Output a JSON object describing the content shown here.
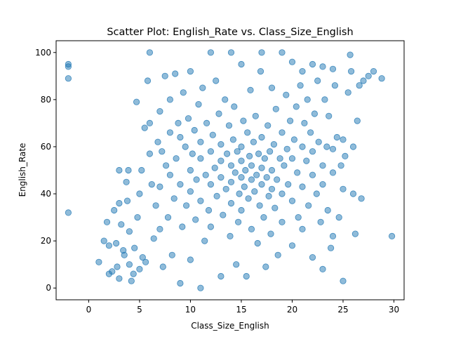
{
  "chart_data": {
    "type": "scatter",
    "title": "Scatter Plot: English_Rate vs. Class_Size_English",
    "xlabel": "Class_Size_English",
    "ylabel": "English_Rate",
    "xlim": [
      -3.2,
      31.0
    ],
    "ylim": [
      -5,
      105
    ],
    "xticks": [
      0,
      5,
      10,
      15,
      20,
      25,
      30
    ],
    "yticks": [
      0,
      20,
      40,
      60,
      80,
      100
    ],
    "grid": false,
    "marker_color": "#1f77b4",
    "marker_alpha": 0.5,
    "series": [
      {
        "points": [
          [
            -2,
            95
          ],
          [
            -2,
            94
          ],
          [
            -2,
            89
          ],
          [
            -2,
            32
          ],
          [
            1,
            11
          ],
          [
            1.5,
            20
          ],
          [
            1.8,
            28
          ],
          [
            2,
            18
          ],
          [
            2,
            6
          ],
          [
            2.3,
            7
          ],
          [
            2.5,
            33
          ],
          [
            2.7,
            19
          ],
          [
            2.8,
            9
          ],
          [
            3,
            36
          ],
          [
            3,
            50
          ],
          [
            3,
            4
          ],
          [
            3.2,
            27
          ],
          [
            3.4,
            16
          ],
          [
            3.5,
            14
          ],
          [
            3.7,
            45
          ],
          [
            3.8,
            37
          ],
          [
            3.9,
            50
          ],
          [
            4,
            10
          ],
          [
            4,
            24
          ],
          [
            4.2,
            3
          ],
          [
            4.4,
            6
          ],
          [
            4.5,
            17
          ],
          [
            4.7,
            79
          ],
          [
            4.8,
            30
          ],
          [
            5,
            8
          ],
          [
            5,
            40
          ],
          [
            5.2,
            50
          ],
          [
            5.3,
            13
          ],
          [
            5.5,
            68
          ],
          [
            5.6,
            11
          ],
          [
            5.8,
            88
          ],
          [
            6,
            100
          ],
          [
            6,
            70
          ],
          [
            6,
            57
          ],
          [
            6.2,
            44
          ],
          [
            6.4,
            21
          ],
          [
            6.6,
            35
          ],
          [
            6.8,
            62
          ],
          [
            7,
            75
          ],
          [
            7,
            43
          ],
          [
            7,
            25
          ],
          [
            7.2,
            58
          ],
          [
            7.3,
            9
          ],
          [
            7.5,
            90
          ],
          [
            7.6,
            52
          ],
          [
            7.8,
            30
          ],
          [
            8,
            80
          ],
          [
            8,
            48
          ],
          [
            8,
            66
          ],
          [
            8.2,
            14
          ],
          [
            8.4,
            38
          ],
          [
            8.5,
            91
          ],
          [
            8.6,
            55
          ],
          [
            8.8,
            70
          ],
          [
            9,
            2
          ],
          [
            9,
            64
          ],
          [
            9,
            44
          ],
          [
            9.2,
            26
          ],
          [
            9.3,
            83
          ],
          [
            9.5,
            60
          ],
          [
            9.6,
            35
          ],
          [
            9.8,
            72
          ],
          [
            10,
            92
          ],
          [
            10,
            50
          ],
          [
            10,
            41
          ],
          [
            10,
            12
          ],
          [
            10.2,
            57
          ],
          [
            10.4,
            67
          ],
          [
            10.5,
            29
          ],
          [
            10.6,
            46
          ],
          [
            10.8,
            78
          ],
          [
            11,
            0
          ],
          [
            11,
            55
          ],
          [
            11,
            62
          ],
          [
            11,
            37
          ],
          [
            11.2,
            85
          ],
          [
            11.4,
            20
          ],
          [
            11.5,
            48
          ],
          [
            11.6,
            70
          ],
          [
            11.8,
            33
          ],
          [
            12,
            100
          ],
          [
            12,
            58
          ],
          [
            12,
            44
          ],
          [
            12,
            26
          ],
          [
            12.2,
            65
          ],
          [
            12.4,
            51
          ],
          [
            12.5,
            88
          ],
          [
            12.6,
            39
          ],
          [
            12.8,
            74
          ],
          [
            13,
            5
          ],
          [
            13,
            54
          ],
          [
            13,
            47
          ],
          [
            13,
            61
          ],
          [
            13.2,
            31
          ],
          [
            13.4,
            80
          ],
          [
            13.5,
            42
          ],
          [
            13.6,
            57
          ],
          [
            13.8,
            69
          ],
          [
            13.9,
            22
          ],
          [
            14,
            100
          ],
          [
            14,
            52
          ],
          [
            14,
            45
          ],
          [
            14,
            36
          ],
          [
            14.2,
            63
          ],
          [
            14.3,
            77
          ],
          [
            14.4,
            49
          ],
          [
            14.5,
            10
          ],
          [
            14.6,
            58
          ],
          [
            14.7,
            28
          ],
          [
            14.8,
            40
          ],
          [
            15,
            95
          ],
          [
            15,
            54
          ],
          [
            15,
            47
          ],
          [
            15,
            60
          ],
          [
            15,
            33
          ],
          [
            15.2,
            71
          ],
          [
            15.3,
            43
          ],
          [
            15.4,
            50
          ],
          [
            15.5,
            5
          ],
          [
            15.6,
            66
          ],
          [
            15.7,
            38
          ],
          [
            15.8,
            56
          ],
          [
            15.9,
            84
          ],
          [
            16,
            46
          ],
          [
            16,
            52
          ],
          [
            16,
            25
          ],
          [
            16.2,
            62
          ],
          [
            16.3,
            41
          ],
          [
            16.4,
            73
          ],
          [
            16.5,
            48
          ],
          [
            16.6,
            19
          ],
          [
            16.7,
            57
          ],
          [
            16.8,
            35
          ],
          [
            16.9,
            92
          ],
          [
            17,
            100
          ],
          [
            17,
            44
          ],
          [
            17,
            51
          ],
          [
            17,
            64
          ],
          [
            17.2,
            30
          ],
          [
            17.3,
            55
          ],
          [
            17.4,
            9
          ],
          [
            17.5,
            47
          ],
          [
            17.6,
            69
          ],
          [
            17.7,
            39
          ],
          [
            17.8,
            58
          ],
          [
            17.9,
            23
          ],
          [
            18,
            85
          ],
          [
            18,
            42
          ],
          [
            18,
            50
          ],
          [
            18.2,
            61
          ],
          [
            18.3,
            34
          ],
          [
            18.4,
            76
          ],
          [
            18.5,
            46
          ],
          [
            18.6,
            14
          ],
          [
            18.8,
            55
          ],
          [
            19,
            100
          ],
          [
            19,
            66
          ],
          [
            19,
            40
          ],
          [
            19,
            28
          ],
          [
            19.2,
            52
          ],
          [
            19.4,
            82
          ],
          [
            19.5,
            59
          ],
          [
            19.6,
            44
          ],
          [
            19.8,
            71
          ],
          [
            20,
            96
          ],
          [
            20,
            55
          ],
          [
            20,
            37
          ],
          [
            20,
            18
          ],
          [
            20.2,
            63
          ],
          [
            20.4,
            77
          ],
          [
            20.5,
            49
          ],
          [
            20.6,
            30
          ],
          [
            20.8,
            86
          ],
          [
            21,
            92
          ],
          [
            21,
            60
          ],
          [
            21,
            43
          ],
          [
            21,
            25
          ],
          [
            21.2,
            70
          ],
          [
            21.4,
            54
          ],
          [
            21.5,
            80
          ],
          [
            21.6,
            35
          ],
          [
            21.8,
            66
          ],
          [
            22,
            95
          ],
          [
            22,
            48
          ],
          [
            22,
            58
          ],
          [
            22,
            13
          ],
          [
            22.2,
            74
          ],
          [
            22.4,
            40
          ],
          [
            22.5,
            88
          ],
          [
            22.6,
            62
          ],
          [
            22.8,
            28
          ],
          [
            23,
            94
          ],
          [
            23,
            52
          ],
          [
            23,
            44
          ],
          [
            23,
            8
          ],
          [
            23.2,
            80
          ],
          [
            23.4,
            60
          ],
          [
            23.5,
            33
          ],
          [
            23.6,
            73
          ],
          [
            23.8,
            17
          ],
          [
            24,
            93
          ],
          [
            24,
            59
          ],
          [
            24,
            49
          ],
          [
            24,
            22
          ],
          [
            24.2,
            86
          ],
          [
            24.4,
            64
          ],
          [
            24.6,
            30
          ],
          [
            24.8,
            52
          ],
          [
            25,
            63
          ],
          [
            25,
            42
          ],
          [
            25,
            3
          ],
          [
            25.2,
            56
          ],
          [
            25.5,
            83
          ],
          [
            25.7,
            99
          ],
          [
            25.8,
            92
          ],
          [
            26,
            60
          ],
          [
            26,
            40
          ],
          [
            26.2,
            23
          ],
          [
            26.4,
            71
          ],
          [
            26.6,
            86
          ],
          [
            26.8,
            38
          ],
          [
            27,
            88
          ],
          [
            27.5,
            90
          ],
          [
            28,
            92
          ],
          [
            28.8,
            89
          ],
          [
            29.8,
            22
          ]
        ]
      }
    ]
  }
}
